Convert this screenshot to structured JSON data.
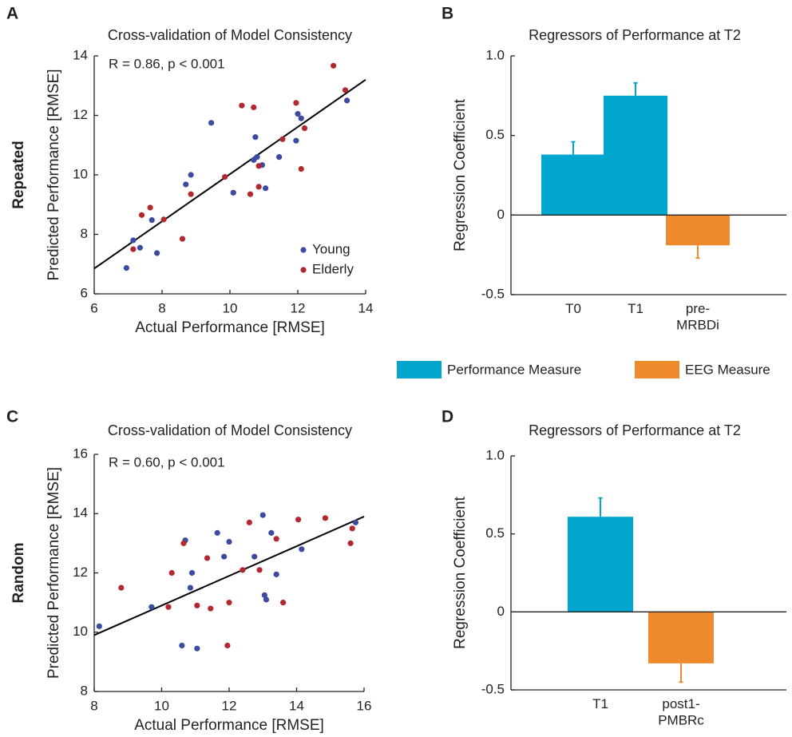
{
  "legend": [
    {
      "name": "Performance Measure",
      "color": "#00a6ce"
    },
    {
      "name": "EEG Measure",
      "color": "#ef8a2c"
    }
  ],
  "chart_data": [
    {
      "panel": "A",
      "row_label": "Repeated",
      "type": "scatter",
      "title": "Cross-validation of Model Consistency",
      "annotation": "R = 0.86, p < 0.001",
      "x_label": "Actual Performance [RMSE]",
      "y_label": "Predicted Performance [RMSE]",
      "xlim": [
        6,
        14
      ],
      "ylim": [
        6,
        14
      ],
      "xticks": [
        6,
        8,
        10,
        12,
        14
      ],
      "yticks": [
        6,
        8,
        10,
        12,
        14
      ],
      "legend": "lower right",
      "series": [
        {
          "name": "Young",
          "color": "#3c4ba1",
          "x": [
            6.95,
            7.15,
            7.35,
            7.7,
            7.85,
            8.7,
            8.85,
            9.45,
            10.1,
            10.7,
            10.75,
            10.8,
            10.95,
            11.05,
            11.45,
            11.95,
            12.0,
            12.1,
            13.45
          ],
          "y": [
            6.87,
            7.8,
            7.55,
            8.48,
            7.37,
            9.68,
            10.0,
            11.75,
            9.4,
            10.5,
            11.27,
            10.6,
            10.33,
            9.55,
            10.6,
            11.15,
            12.05,
            11.9,
            12.5
          ]
        },
        {
          "name": "Elderly",
          "color": "#b3282d",
          "x": [
            7.15,
            7.4,
            7.65,
            8.05,
            8.6,
            8.85,
            9.85,
            10.35,
            10.6,
            10.7,
            10.85,
            10.85,
            11.55,
            11.95,
            12.1,
            12.2,
            13.05,
            13.4
          ],
          "y": [
            7.5,
            8.65,
            8.9,
            8.5,
            7.85,
            9.35,
            9.93,
            12.33,
            9.35,
            12.27,
            9.6,
            10.3,
            11.2,
            12.42,
            10.2,
            11.57,
            13.67,
            12.85
          ]
        }
      ],
      "fit_line": {
        "x": [
          6,
          14
        ],
        "y": [
          6.85,
          13.2
        ],
        "color": "#000000"
      }
    },
    {
      "panel": "B",
      "type": "bar",
      "title": "Regressors of Performance at T2",
      "y_label": "Regression Coefficient",
      "categories": [
        "T0",
        "T1",
        "pre-\nMRBDi"
      ],
      "values": [
        0.38,
        0.75,
        -0.19
      ],
      "errors": [
        0.08,
        0.08,
        0.08
      ],
      "colors": [
        "#00a6ce",
        "#00a6ce",
        "#ef8a2c"
      ],
      "ylim": [
        -0.5,
        1
      ],
      "yticks": [
        -0.5,
        0,
        0.5,
        {
          "value": 1,
          "label": "1.0"
        }
      ]
    },
    {
      "panel": "C",
      "row_label": "Random",
      "type": "scatter",
      "title": "Cross-validation of Model Consistency",
      "annotation": "R = 0.60, p < 0.001",
      "x_label": "Actual Performance [RMSE]",
      "y_label": "Predicted Performance [RMSE]",
      "xlim": [
        8,
        16
      ],
      "ylim": [
        8,
        16
      ],
      "xticks": [
        8,
        10,
        12,
        14,
        16
      ],
      "yticks": [
        8,
        10,
        12,
        14,
        16
      ],
      "series": [
        {
          "name": "Young",
          "color": "#3c4ba1",
          "x": [
            8.15,
            9.7,
            10.6,
            10.7,
            10.85,
            10.9,
            11.05,
            11.65,
            11.85,
            12.0,
            12.75,
            13.0,
            13.05,
            13.1,
            13.25,
            13.4,
            14.15,
            15.75
          ],
          "y": [
            10.2,
            10.85,
            9.55,
            13.1,
            11.5,
            12.0,
            9.45,
            13.35,
            12.55,
            13.05,
            12.55,
            13.95,
            11.25,
            11.1,
            13.35,
            11.95,
            12.8,
            13.7
          ]
        },
        {
          "name": "Elderly",
          "color": "#b3282d",
          "x": [
            8.8,
            10.2,
            10.3,
            10.65,
            11.05,
            11.35,
            11.45,
            11.95,
            12.0,
            12.4,
            12.6,
            12.9,
            13.4,
            13.6,
            14.05,
            14.85,
            15.65,
            15.6
          ],
          "y": [
            11.5,
            10.85,
            12.0,
            13.0,
            10.9,
            12.5,
            10.8,
            9.55,
            11.0,
            12.1,
            13.7,
            12.1,
            13.15,
            11.0,
            13.8,
            13.85,
            13.5,
            13.0
          ]
        }
      ],
      "fit_line": {
        "x": [
          8,
          16
        ],
        "y": [
          9.9,
          13.9
        ],
        "color": "#000000"
      }
    },
    {
      "panel": "D",
      "type": "bar",
      "title": "Regressors of Performance at T2",
      "y_label": "Regression Coefficient",
      "categories": [
        "T1",
        "post1-\nPMBRc"
      ],
      "values": [
        0.61,
        -0.33
      ],
      "errors": [
        0.12,
        0.12
      ],
      "colors": [
        "#00a6ce",
        "#ef8a2c"
      ],
      "ylim": [
        -0.5,
        1
      ],
      "yticks": [
        -0.5,
        0,
        0.5,
        {
          "value": 1,
          "label": "1.0"
        }
      ]
    }
  ]
}
